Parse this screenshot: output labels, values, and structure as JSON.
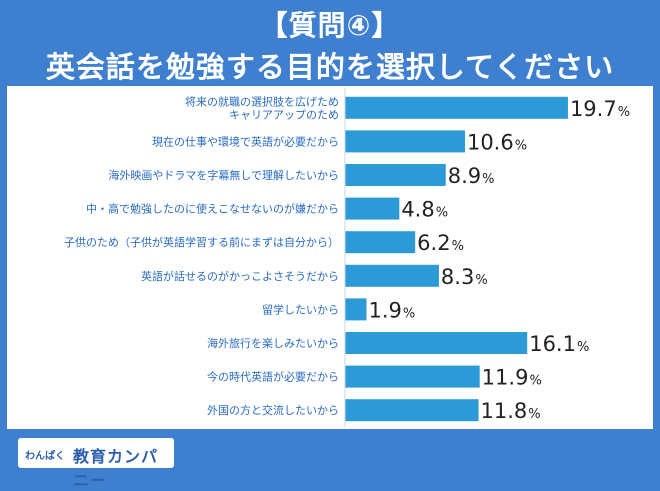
{
  "header": {
    "title_line1": "【質問④】",
    "title_line2": "英会話を勉強する目的を選択してください"
  },
  "footer": {
    "logo_prefix": "わんぱく",
    "logo_main": "教育カンパニー"
  },
  "colors": {
    "background": "#3f7fd0",
    "bar": "#2b9ad6",
    "label_text": "#2a6cc2",
    "value_text": "#222222"
  },
  "chart_data": {
    "type": "bar",
    "orientation": "horizontal",
    "categories": [
      [
        "将来の就職の選択肢を広げため",
        "キャリアアップのため"
      ],
      [
        "現在の仕事や環境で英語が必要だから"
      ],
      [
        "海外映画やドラマを字幕無しで理解したいから"
      ],
      [
        "中・高で勉強したのに使えこなせないのが嫌だから"
      ],
      [
        "子供のため（子供が英語学習する前にまずは自分から）"
      ],
      [
        "英語が話せるのがかっこよさそうだから"
      ],
      [
        "留学したいから"
      ],
      [
        "海外旅行を楽しみたいから"
      ],
      [
        "今の時代英語が必要だから"
      ],
      [
        "外国の方と交流したいから"
      ]
    ],
    "values": [
      19.7,
      10.6,
      8.9,
      4.8,
      6.2,
      8.3,
      1.9,
      16.1,
      11.9,
      11.8
    ],
    "value_labels": [
      "19.7",
      "10.6",
      "8.9",
      "4.8",
      "6.2",
      "8.3",
      "1.9",
      "16.1",
      "11.9",
      "11.8"
    ],
    "unit": "%",
    "xlim": [
      0,
      20.5
    ]
  }
}
